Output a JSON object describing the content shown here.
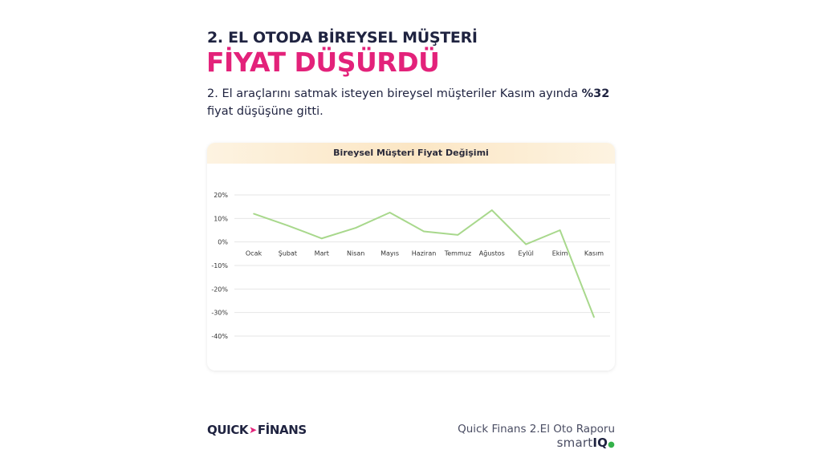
{
  "colors": {
    "heading_dark": "#1f2340",
    "heading_accent": "#e3227a",
    "line": "#a8d88c",
    "grid": "#e6e6e6",
    "header_bg": "#fbe6c4"
  },
  "header": {
    "title_line1": "2. EL OTODA BİREYSEL MÜŞTERİ",
    "title_line2": "FİYAT DÜŞÜRDÜ"
  },
  "description": {
    "prefix": "2. El araçlarını satmak isteyen bireysel müşteriler Kasım ayında ",
    "highlight": "%32",
    "suffix": " fiyat düşüşüne gitti."
  },
  "chart_data": {
    "type": "line",
    "title": "Bireysel Müşteri Fiyat Değişimi",
    "categories": [
      "Ocak",
      "Şubat",
      "Mart",
      "Nisan",
      "Mayıs",
      "Haziran",
      "Temmuz",
      "Ağustos",
      "Eylül",
      "Ekim",
      "Kasım"
    ],
    "series": [
      {
        "values": [
          12,
          7,
          1.5,
          6,
          12.5,
          4.5,
          3,
          13.5,
          -1,
          5,
          -32
        ]
      }
    ],
    "ylim": [
      -40,
      20
    ],
    "yticks": [
      20,
      10,
      0,
      -10,
      -20,
      -30,
      -40
    ],
    "ytick_labels": [
      "20%",
      "10%",
      "0%",
      "-10%",
      "-20%",
      "-30%",
      "-40%"
    ],
    "grid": true,
    "legend": "none",
    "xlabel": "",
    "ylabel": ""
  },
  "footer": {
    "logo_left": "QUICK",
    "logo_right": "FİNANS",
    "logo_arrow": "arrow-right-icon",
    "report_title": "Quick Finans 2.El Oto Raporu",
    "brand_prefix": "smart",
    "brand_suffix": "IQ"
  }
}
